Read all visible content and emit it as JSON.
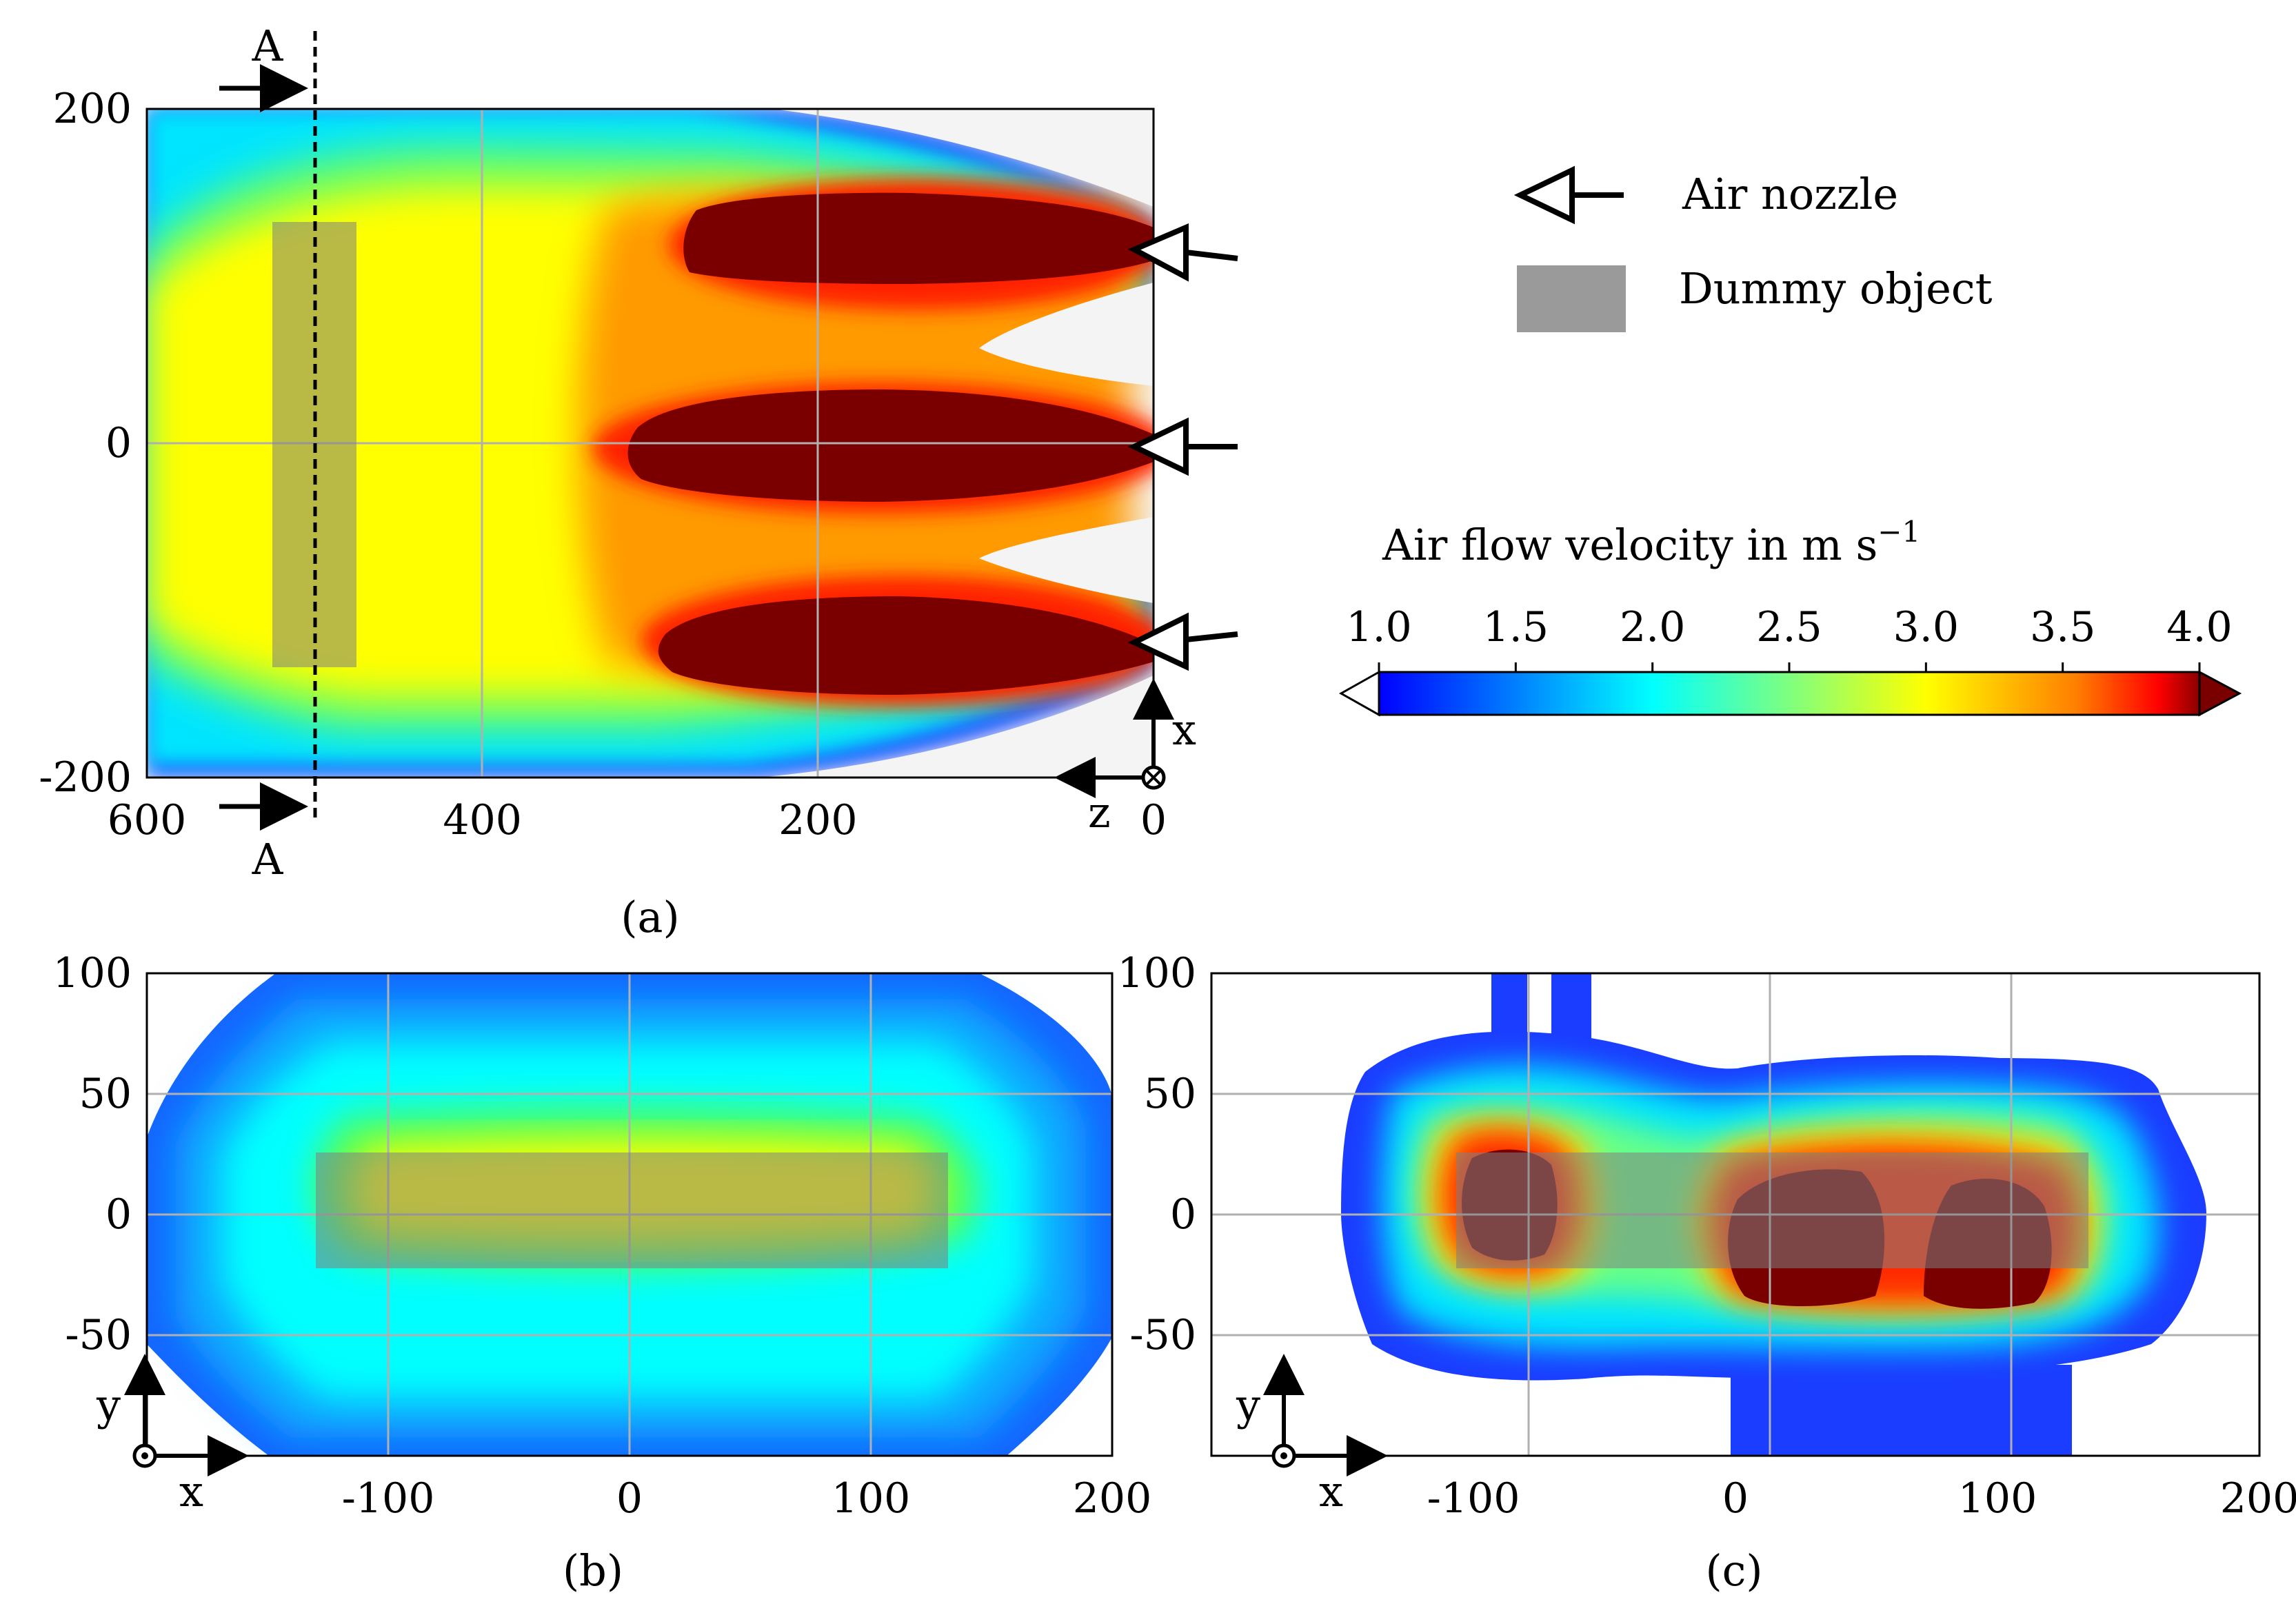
{
  "chart_data": [
    {
      "id": "a",
      "type": "heatmap",
      "caption": "(a)",
      "x_ticks": [
        600,
        400,
        200,
        0
      ],
      "y_ticks": [
        200,
        0,
        -200
      ],
      "xlim": [
        600,
        0
      ],
      "ylim": [
        -200,
        200
      ],
      "axis_labels": {
        "x": "x",
        "z": "z",
        "origin": "0"
      },
      "section": {
        "label_top": "A",
        "label_bottom": "A",
        "position": 500
      },
      "dummy_object": {
        "z_range": [
          475,
          525
        ],
        "x_range": [
          -133,
          133
        ]
      },
      "nozzles": [
        {
          "z": 0,
          "x": 115
        },
        {
          "z": 0,
          "x": 0
        },
        {
          "z": 0,
          "x": -115
        }
      ]
    },
    {
      "id": "b",
      "type": "heatmap",
      "caption": "(b)",
      "x_ticks": [
        -100,
        0,
        100,
        200
      ],
      "y_ticks": [
        100,
        50,
        0,
        -50
      ],
      "xlim": [
        -200,
        200
      ],
      "ylim": [
        -100,
        100
      ],
      "axis_labels": {
        "x": "x",
        "y": "y"
      },
      "dummy_object": {
        "x_range": [
          -130,
          132
        ],
        "y_range": [
          -23,
          25
        ]
      }
    },
    {
      "id": "c",
      "type": "heatmap",
      "caption": "(c)",
      "x_ticks": [
        -100,
        0,
        100,
        200
      ],
      "y_ticks": [
        100,
        50,
        0,
        -50
      ],
      "xlim": [
        -200,
        200
      ],
      "ylim": [
        -100,
        100
      ],
      "axis_labels": {
        "x": "x",
        "y": "y"
      },
      "dummy_object": {
        "x_range": [
          -130,
          132
        ],
        "y_range": [
          -23,
          25
        ]
      }
    }
  ],
  "legend": {
    "nozzle_label": "Air nozzle",
    "dummy_label": "Dummy object"
  },
  "colorbar": {
    "title": "Air flow velocity in m s",
    "title_sup": "−1",
    "ticks": [
      "1.0",
      "1.5",
      "2.0",
      "2.5",
      "3.0",
      "3.5",
      "4.0"
    ],
    "range": [
      1.0,
      4.0
    ],
    "extend": "both"
  },
  "colors": {
    "low": "#0000ff",
    "cyan": "#00ffff",
    "yellow": "#ffff00",
    "high": "#ff0000",
    "max": "#7a0000",
    "dummy": "#808080",
    "background_empty": "#f4f4f4"
  }
}
